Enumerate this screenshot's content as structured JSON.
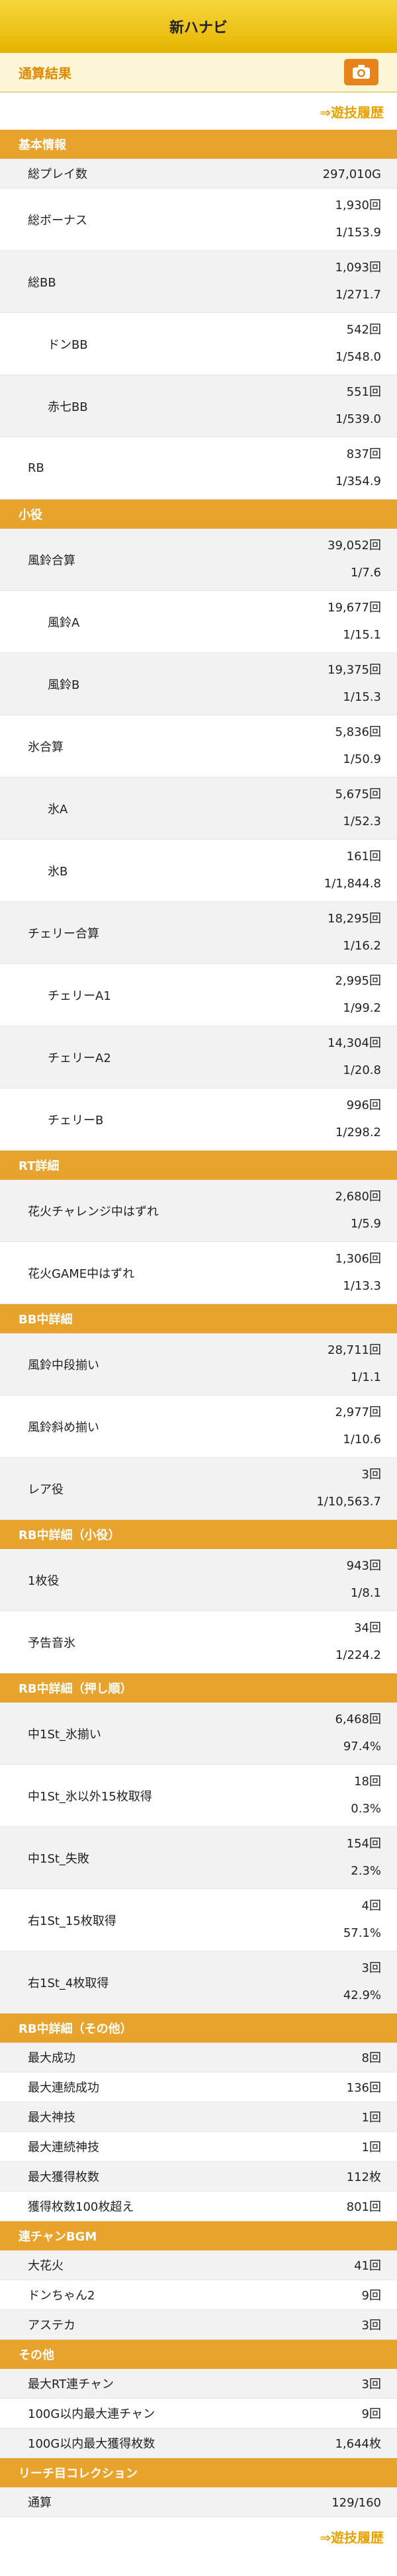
{
  "header": {
    "title": "新ハナビ"
  },
  "subheader": {
    "title": "通算結果",
    "camera_icon": "camera-icon",
    "accent": "#e8831c"
  },
  "history_link": "⇒遊技履歴",
  "section_color": "#e8a32d",
  "sections": [
    {
      "title": "基本情報",
      "rows": [
        {
          "label": "総プレイ数",
          "values": [
            "297,010G"
          ]
        },
        {
          "label": "総ボーナス",
          "values": [
            "1,930回",
            "1/153.9"
          ]
        },
        {
          "label": "総BB",
          "values": [
            "1,093回",
            "1/271.7"
          ]
        },
        {
          "label": "ドンBB",
          "values": [
            "542回",
            "1/548.0"
          ],
          "indent": true
        },
        {
          "label": "赤七BB",
          "values": [
            "551回",
            "1/539.0"
          ],
          "indent": true
        },
        {
          "label": "RB",
          "values": [
            "837回",
            "1/354.9"
          ]
        }
      ]
    },
    {
      "title": "小役",
      "rows": [
        {
          "label": "風鈴合算",
          "values": [
            "39,052回",
            "1/7.6"
          ]
        },
        {
          "label": "風鈴A",
          "values": [
            "19,677回",
            "1/15.1"
          ],
          "indent": true
        },
        {
          "label": "風鈴B",
          "values": [
            "19,375回",
            "1/15.3"
          ],
          "indent": true
        },
        {
          "label": "氷合算",
          "values": [
            "5,836回",
            "1/50.9"
          ]
        },
        {
          "label": "氷A",
          "values": [
            "5,675回",
            "1/52.3"
          ],
          "indent": true
        },
        {
          "label": "氷B",
          "values": [
            "161回",
            "1/1,844.8"
          ],
          "indent": true
        },
        {
          "label": "チェリー合算",
          "values": [
            "18,295回",
            "1/16.2"
          ]
        },
        {
          "label": "チェリーA1",
          "values": [
            "2,995回",
            "1/99.2"
          ],
          "indent": true
        },
        {
          "label": "チェリーA2",
          "values": [
            "14,304回",
            "1/20.8"
          ],
          "indent": true
        },
        {
          "label": "チェリーB",
          "values": [
            "996回",
            "1/298.2"
          ],
          "indent": true
        }
      ]
    },
    {
      "title": "RT詳細",
      "rows": [
        {
          "label": "花火チャレンジ中はずれ",
          "values": [
            "2,680回",
            "1/5.9"
          ]
        },
        {
          "label": "花火GAME中はずれ",
          "values": [
            "1,306回",
            "1/13.3"
          ]
        }
      ]
    },
    {
      "title": "BB中詳細",
      "rows": [
        {
          "label": "風鈴中段揃い",
          "values": [
            "28,711回",
            "1/1.1"
          ]
        },
        {
          "label": "風鈴斜め揃い",
          "values": [
            "2,977回",
            "1/10.6"
          ]
        },
        {
          "label": "レア役",
          "values": [
            "3回",
            "1/10,563.7"
          ]
        }
      ]
    },
    {
      "title": "RB中詳細（小役）",
      "rows": [
        {
          "label": "1枚役",
          "values": [
            "943回",
            "1/8.1"
          ]
        },
        {
          "label": "予告音氷",
          "values": [
            "34回",
            "1/224.2"
          ]
        }
      ]
    },
    {
      "title": "RB中詳細（押し順）",
      "rows": [
        {
          "label": "中1St_氷揃い",
          "values": [
            "6,468回",
            "97.4%"
          ]
        },
        {
          "label": "中1St_氷以外15枚取得",
          "values": [
            "18回",
            "0.3%"
          ]
        },
        {
          "label": "中1St_失敗",
          "values": [
            "154回",
            "2.3%"
          ]
        },
        {
          "label": "右1St_15枚取得",
          "values": [
            "4回",
            "57.1%"
          ]
        },
        {
          "label": "右1St_4枚取得",
          "values": [
            "3回",
            "42.9%"
          ]
        }
      ]
    },
    {
      "title": "RB中詳細（その他）",
      "rows": [
        {
          "label": "最大成功",
          "values": [
            "8回"
          ]
        },
        {
          "label": "最大連続成功",
          "values": [
            "136回"
          ]
        },
        {
          "label": "最大神技",
          "values": [
            "1回"
          ]
        },
        {
          "label": "最大連続神技",
          "values": [
            "1回"
          ]
        },
        {
          "label": "最大獲得枚数",
          "values": [
            "112枚"
          ]
        },
        {
          "label": "獲得枚数100枚超え",
          "values": [
            "801回"
          ]
        }
      ]
    },
    {
      "title": "連チャンBGM",
      "rows": [
        {
          "label": "大花火",
          "values": [
            "41回"
          ]
        },
        {
          "label": "ドンちゃん2",
          "values": [
            "9回"
          ]
        },
        {
          "label": "アステカ",
          "values": [
            "3回"
          ]
        }
      ]
    },
    {
      "title": "その他",
      "rows": [
        {
          "label": "最大RT連チャン",
          "values": [
            "3回"
          ]
        },
        {
          "label": "100G以内最大連チャン",
          "values": [
            "9回"
          ]
        },
        {
          "label": "100G以内最大獲得枚数",
          "values": [
            "1,644枚"
          ]
        }
      ]
    },
    {
      "title": "リーチ目コレクション",
      "rows": [
        {
          "label": "通算",
          "values": [
            "129/160"
          ]
        }
      ]
    }
  ]
}
